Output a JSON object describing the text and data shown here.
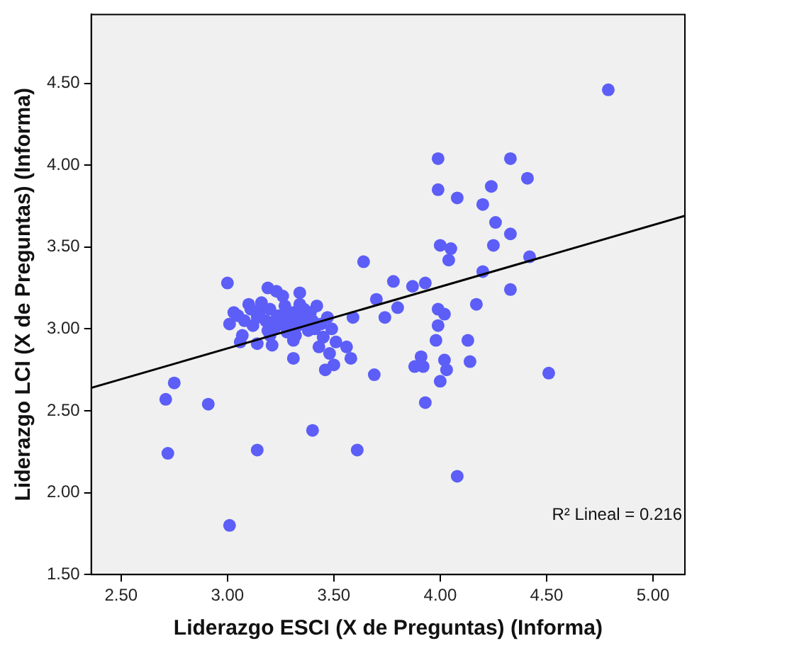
{
  "chart_data": {
    "type": "scatter",
    "xlabel": "Liderazgo ESCI (X de Preguntas) (Informa)",
    "ylabel": "Liderazgo LCI (X de Preguntas) (Informa)",
    "xlim": [
      2.36,
      5.15
    ],
    "ylim": [
      1.5,
      4.92
    ],
    "xticks": [
      {
        "value": 2.5,
        "label": "2.50"
      },
      {
        "value": 3,
        "label": "3.00"
      },
      {
        "value": 3.5,
        "label": "3.50"
      },
      {
        "value": 4,
        "label": "4.00"
      },
      {
        "value": 4.5,
        "label": "4.50"
      },
      {
        "value": 5,
        "label": "5.00"
      }
    ],
    "yticks": [
      {
        "value": 1.5,
        "label": "1.50"
      },
      {
        "value": 2,
        "label": "2.00"
      },
      {
        "value": 2.5,
        "label": "2.50"
      },
      {
        "value": 3,
        "label": "3.00"
      },
      {
        "value": 3.5,
        "label": "3.50"
      },
      {
        "value": 4,
        "label": "4.00"
      },
      {
        "value": 4.5,
        "label": "4.50"
      }
    ],
    "grid": false,
    "legend": false,
    "marker": "circle",
    "annotations": [
      "R² Lineal = 0.216"
    ],
    "series": [
      {
        "color": "#5c5ef7",
        "x": [
          4.79,
          3.99,
          4.33,
          4.41,
          3.99,
          4.08,
          4.24,
          4.2,
          4.26,
          4.33,
          4.25,
          4.0,
          4.05,
          4.04,
          4.42,
          4.2,
          4.33,
          4.17,
          3.78,
          3.87,
          3.93,
          3.8,
          3.99,
          4.02,
          3.99,
          3.98,
          4.13,
          4.14,
          3.91,
          3.88,
          3.92,
          4.02,
          4.03,
          4.0,
          4.51,
          3.93,
          4.08,
          2.75,
          2.71,
          2.91,
          2.72,
          3.14,
          3.4,
          3.61,
          3.01,
          3.69,
          3.31,
          3.46,
          3.5,
          3.58,
          3.0,
          3.19,
          3.23,
          3.34,
          3.64,
          3.1,
          3.03,
          3.01,
          3.07,
          3.06,
          3.14,
          3.21,
          3.31,
          3.42,
          3.43,
          3.49,
          3.51,
          3.56,
          3.48,
          3.45,
          3.59,
          3.7,
          3.74,
          3.15,
          3.18,
          3.2,
          3.22,
          3.24,
          3.25,
          3.27,
          3.28,
          3.3,
          3.31,
          3.33,
          3.35,
          3.36,
          3.38,
          3.4,
          3.12,
          3.16,
          3.2,
          3.26,
          3.29,
          3.32,
          3.34,
          3.37,
          3.39,
          3.23,
          3.19,
          3.27,
          3.41,
          3.14,
          3.44,
          3.08,
          3.11,
          3.45,
          3.47,
          3.05
        ],
        "values": [
          4.46,
          4.04,
          4.04,
          3.92,
          3.85,
          3.8,
          3.87,
          3.76,
          3.65,
          3.58,
          3.51,
          3.51,
          3.49,
          3.42,
          3.44,
          3.35,
          3.24,
          3.15,
          3.29,
          3.26,
          3.28,
          3.13,
          3.12,
          3.09,
          3.02,
          2.93,
          2.93,
          2.8,
          2.83,
          2.77,
          2.77,
          2.81,
          2.75,
          2.68,
          2.73,
          2.55,
          2.1,
          2.67,
          2.57,
          2.54,
          2.24,
          2.26,
          2.38,
          2.26,
          1.8,
          2.72,
          2.82,
          2.75,
          2.78,
          2.82,
          3.28,
          3.25,
          3.23,
          3.22,
          3.41,
          3.15,
          3.1,
          3.03,
          2.96,
          2.92,
          2.91,
          2.9,
          2.93,
          3.14,
          2.89,
          3.0,
          2.92,
          2.89,
          2.85,
          2.95,
          3.07,
          3.18,
          3.07,
          3.1,
          3.05,
          3.12,
          3.0,
          3.08,
          3.03,
          3.14,
          2.98,
          3.06,
          3.1,
          3.02,
          3.08,
          3.12,
          2.99,
          3.05,
          3.02,
          3.16,
          2.96,
          3.2,
          3.01,
          2.96,
          3.15,
          3.04,
          3.1,
          3.06,
          2.99,
          3.09,
          3.0,
          3.07,
          3.03,
          3.05,
          3.12,
          2.95,
          3.07,
          3.08
        ]
      },
      {
        "type": "line",
        "marker": "none",
        "color": "#000000",
        "x": [
          2.36,
          5.15
        ],
        "values": [
          2.64,
          3.69
        ]
      }
    ]
  }
}
